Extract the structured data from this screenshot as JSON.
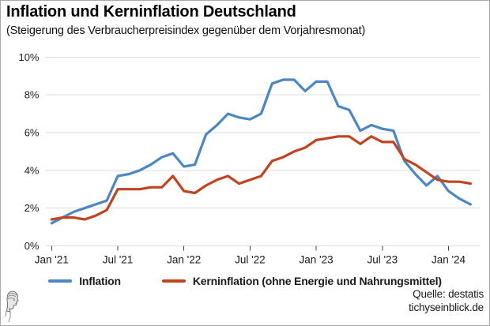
{
  "header": {
    "title": "Inflation und Kerninflation Deutschland",
    "subtitle": "(Steigerung des Verbraucherpreisindex gegenüber dem Vorjahresmonat)"
  },
  "footer": {
    "source_line1": "Quelle: destatis",
    "source_line2": "tichyseinblick.de",
    "logo": "minerva-profile-engraving"
  },
  "chart_data": {
    "type": "line",
    "title": "Inflation und Kerninflation Deutschland",
    "subtitle": "(Steigerung des Verbraucherpreisindex gegenüber dem Vorjahresmonat)",
    "xlabel": "",
    "ylabel": "",
    "ylim": [
      0,
      10
    ],
    "grid": "horizontal",
    "legend_position": "bottom",
    "yticks": [
      0,
      2,
      4,
      6,
      8,
      10
    ],
    "ytick_labels": [
      "0%",
      "2%",
      "4%",
      "6%",
      "8%",
      "10%"
    ],
    "xticks": [
      {
        "index": 0,
        "label": "Jan '21"
      },
      {
        "index": 6,
        "label": "Jul '21"
      },
      {
        "index": 12,
        "label": "Jan '22"
      },
      {
        "index": 18,
        "label": "Jul '22"
      },
      {
        "index": 24,
        "label": "Jan '23"
      },
      {
        "index": 30,
        "label": "Jul '23"
      },
      {
        "index": 36,
        "label": "Jan '24"
      }
    ],
    "categories": [
      "2021-01",
      "2021-02",
      "2021-03",
      "2021-04",
      "2021-05",
      "2021-06",
      "2021-07",
      "2021-08",
      "2021-09",
      "2021-10",
      "2021-11",
      "2021-12",
      "2022-01",
      "2022-02",
      "2022-03",
      "2022-04",
      "2022-05",
      "2022-06",
      "2022-07",
      "2022-08",
      "2022-09",
      "2022-10",
      "2022-11",
      "2022-12",
      "2023-01",
      "2023-02",
      "2023-03",
      "2023-04",
      "2023-05",
      "2023-06",
      "2023-07",
      "2023-08",
      "2023-09",
      "2023-10",
      "2023-11",
      "2023-12",
      "2024-01",
      "2024-02",
      "2024-03"
    ],
    "series": [
      {
        "name": "Inflation",
        "color": "#4c86c3",
        "values": [
          1.2,
          1.5,
          1.8,
          2.0,
          2.2,
          2.4,
          3.7,
          3.8,
          4.0,
          4.3,
          4.7,
          4.9,
          4.2,
          4.3,
          5.9,
          6.4,
          7.0,
          6.8,
          6.7,
          7.0,
          8.6,
          8.8,
          8.8,
          8.2,
          8.7,
          8.7,
          7.4,
          7.2,
          6.1,
          6.4,
          6.2,
          6.1,
          4.5,
          3.8,
          3.2,
          3.7,
          2.9,
          2.5,
          2.2
        ]
      },
      {
        "name": "Kerninflation (ohne Energie und Nahrungsmittel)",
        "color": "#bf4422",
        "values": [
          1.4,
          1.5,
          1.5,
          1.4,
          1.6,
          1.9,
          3.0,
          3.0,
          3.0,
          3.1,
          3.1,
          3.7,
          2.9,
          2.8,
          3.2,
          3.5,
          3.7,
          3.3,
          3.5,
          3.7,
          4.5,
          4.7,
          5.0,
          5.2,
          5.6,
          5.7,
          5.8,
          5.8,
          5.4,
          5.8,
          5.5,
          5.5,
          4.6,
          4.3,
          3.9,
          3.5,
          3.4,
          3.4,
          3.3
        ]
      }
    ]
  },
  "style": {
    "gridline_color": "#dcdcdc",
    "tick_color": "#444444",
    "axis_text_color": "#1a1a1a"
  }
}
